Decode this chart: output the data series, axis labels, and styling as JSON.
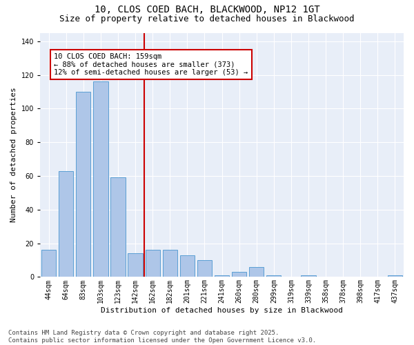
{
  "title": "10, CLOS COED BACH, BLACKWOOD, NP12 1GT",
  "subtitle": "Size of property relative to detached houses in Blackwood",
  "xlabel": "Distribution of detached houses by size in Blackwood",
  "ylabel": "Number of detached properties",
  "categories": [
    "44sqm",
    "64sqm",
    "83sqm",
    "103sqm",
    "123sqm",
    "142sqm",
    "162sqm",
    "182sqm",
    "201sqm",
    "221sqm",
    "241sqm",
    "260sqm",
    "280sqm",
    "299sqm",
    "319sqm",
    "339sqm",
    "358sqm",
    "378sqm",
    "398sqm",
    "417sqm",
    "437sqm"
  ],
  "values": [
    16,
    63,
    110,
    116,
    59,
    14,
    16,
    16,
    13,
    10,
    1,
    3,
    6,
    1,
    0,
    1,
    0,
    0,
    0,
    0,
    1
  ],
  "bar_color": "#aec6e8",
  "bar_edge_color": "#5a9fd4",
  "vline_color": "#cc0000",
  "annotation_text": "10 CLOS COED BACH: 159sqm\n← 88% of detached houses are smaller (373)\n12% of semi-detached houses are larger (53) →",
  "annotation_box_color": "#ffffff",
  "annotation_box_edge": "#cc0000",
  "ylim": [
    0,
    145
  ],
  "yticks": [
    0,
    20,
    40,
    60,
    80,
    100,
    120,
    140
  ],
  "background_color": "#e8eef8",
  "footer": "Contains HM Land Registry data © Crown copyright and database right 2025.\nContains public sector information licensed under the Open Government Licence v3.0.",
  "title_fontsize": 10,
  "subtitle_fontsize": 9,
  "xlabel_fontsize": 8,
  "ylabel_fontsize": 8,
  "annotation_fontsize": 7.5,
  "footer_fontsize": 6.5,
  "tick_fontsize": 7
}
